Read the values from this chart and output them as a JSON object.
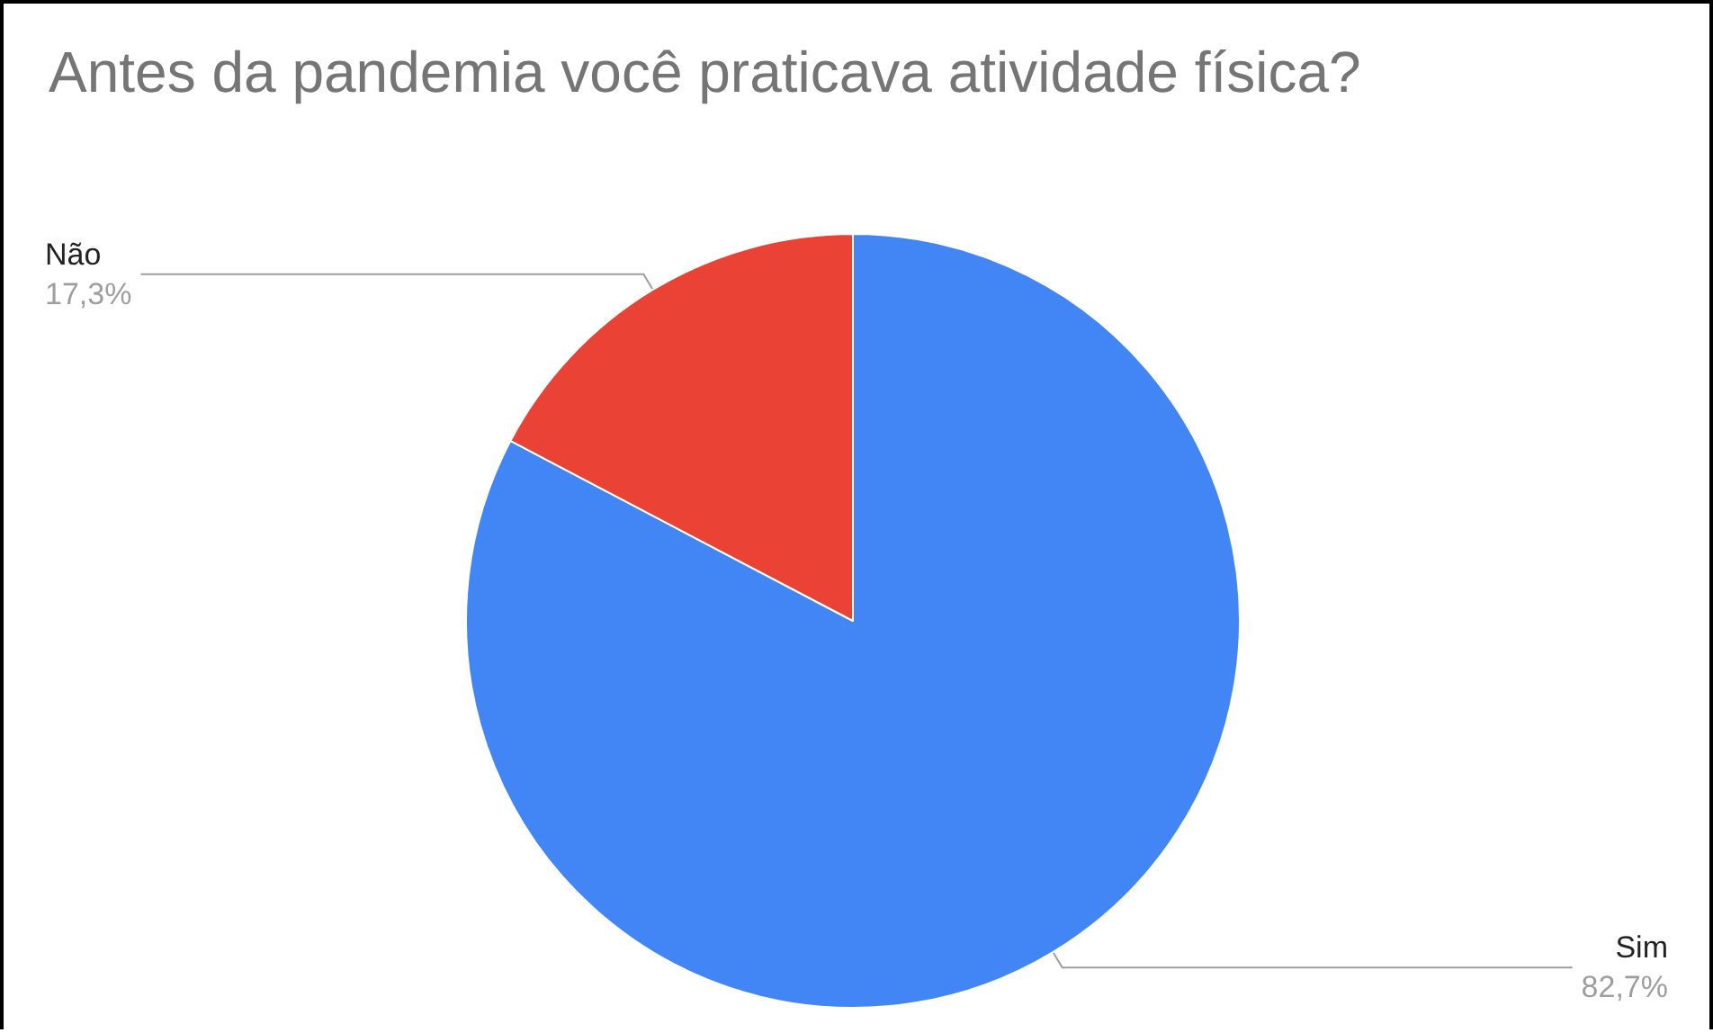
{
  "chart_data": {
    "type": "pie",
    "title": "Antes da pandemia você praticava atividade física?",
    "categories": [
      "Sim",
      "Não"
    ],
    "values": [
      82.7,
      17.3
    ],
    "value_labels": [
      "82,7%",
      "17,3%"
    ],
    "colors": [
      "#4285f4",
      "#ea4335"
    ],
    "legend": false
  }
}
